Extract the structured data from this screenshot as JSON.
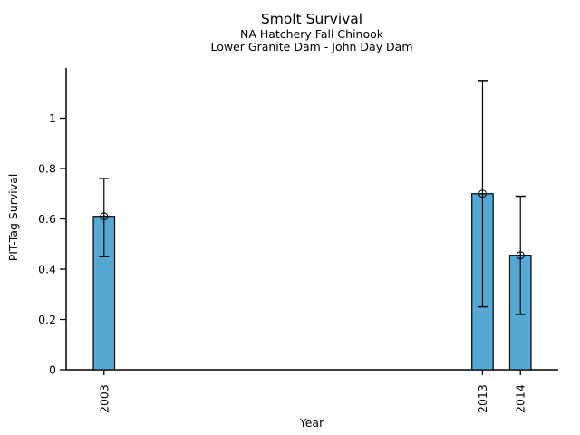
{
  "chart_data": {
    "type": "bar",
    "title": "Smolt Survival",
    "subtitles": [
      "NA Hatchery Fall Chinook",
      "Lower Granite Dam - John Day Dam"
    ],
    "xlabel": "Year",
    "ylabel": "PIT-Tag Survival",
    "categories": [
      "2003",
      "2013",
      "2014"
    ],
    "x_years": [
      2003,
      2013,
      2014
    ],
    "values": [
      0.61,
      0.7,
      0.455
    ],
    "error_low": [
      0.45,
      0.25,
      0.22
    ],
    "error_high": [
      0.76,
      1.15,
      0.69
    ],
    "y_ticks": [
      0,
      0.2,
      0.4,
      0.6,
      0.8,
      1
    ],
    "y_tick_labels": [
      "0",
      "0.2",
      "0.4",
      "0.6",
      "0.8",
      "1"
    ],
    "ylim": [
      0,
      1.2
    ],
    "xlim": [
      2002,
      2015
    ],
    "grid": false,
    "legend": "none",
    "marker": "circle-plus",
    "bar_fill": "#55a8d4",
    "axis_color": "#000000",
    "background": "#ffffff"
  }
}
